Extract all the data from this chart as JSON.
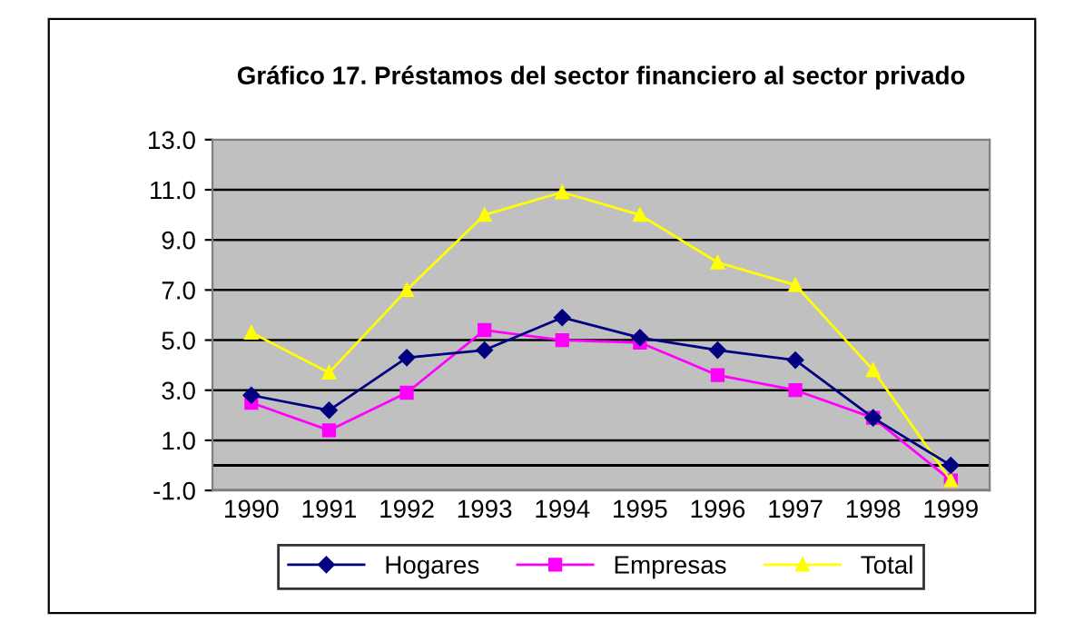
{
  "chart_data": {
    "type": "line",
    "title": "Gráfico 17. Préstamos del sector financiero al sector privado",
    "categories": [
      "1990",
      "1991",
      "1992",
      "1993",
      "1994",
      "1995",
      "1996",
      "1997",
      "1998",
      "1999"
    ],
    "series": [
      {
        "name": "Hogares",
        "color": "#000080",
        "marker": "diamond",
        "values": [
          2.8,
          2.2,
          4.3,
          4.6,
          5.9,
          5.1,
          4.6,
          4.2,
          1.9,
          0.0
        ]
      },
      {
        "name": "Empresas",
        "color": "#ff00ff",
        "marker": "square",
        "values": [
          2.5,
          1.4,
          2.9,
          5.4,
          5.0,
          4.9,
          3.6,
          3.0,
          1.9,
          -0.6
        ]
      },
      {
        "name": "Total",
        "color": "#ffff00",
        "marker": "triangle",
        "values": [
          5.3,
          3.7,
          7.0,
          10.0,
          10.9,
          10.0,
          8.1,
          7.2,
          3.8,
          -0.6
        ]
      }
    ],
    "ylim": [
      -1.0,
      13.0
    ],
    "yticks": [
      {
        "value": -1,
        "label": "-1.0"
      },
      {
        "value": 1,
        "label": "1.0"
      },
      {
        "value": 3,
        "label": "3.0"
      },
      {
        "value": 5,
        "label": "5.0"
      },
      {
        "value": 7,
        "label": "7.0"
      },
      {
        "value": 9,
        "label": "9.0"
      },
      {
        "value": 11,
        "label": "11.0"
      },
      {
        "value": 13,
        "label": "13.0"
      }
    ],
    "grid": "y",
    "legend": "bottom",
    "line_style": "solid",
    "ref_lines": [
      {
        "axis": "y",
        "value": 0,
        "color": "#000000"
      }
    ]
  }
}
